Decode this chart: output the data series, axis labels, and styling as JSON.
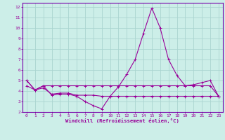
{
  "xlabel": "Windchill (Refroidissement éolien,°C)",
  "background_color": "#cceee8",
  "grid_color": "#aad4d0",
  "line_color": "#990099",
  "spine_color": "#7700aa",
  "xlim": [
    -0.5,
    23.5
  ],
  "ylim": [
    2,
    12.4
  ],
  "yticks": [
    2,
    3,
    4,
    5,
    6,
    7,
    8,
    9,
    10,
    11,
    12
  ],
  "xticks": [
    0,
    1,
    2,
    3,
    4,
    5,
    6,
    7,
    8,
    9,
    10,
    11,
    12,
    13,
    14,
    15,
    16,
    17,
    18,
    19,
    20,
    21,
    22,
    23
  ],
  "series1_x": [
    0,
    1,
    2,
    3,
    4,
    5,
    6,
    7,
    8,
    9,
    10,
    11,
    12,
    13,
    14,
    15,
    16,
    17,
    18,
    19,
    20,
    21,
    22,
    23
  ],
  "series1_y": [
    5.0,
    4.1,
    4.5,
    3.6,
    3.7,
    3.7,
    3.5,
    3.0,
    2.6,
    2.3,
    3.5,
    4.4,
    5.6,
    7.0,
    9.5,
    11.9,
    10.0,
    7.0,
    5.5,
    4.5,
    4.6,
    4.8,
    5.0,
    3.5
  ],
  "series2_x": [
    0,
    1,
    2,
    3,
    4,
    5,
    6,
    7,
    8,
    9,
    10,
    11,
    12,
    13,
    14,
    15,
    16,
    17,
    18,
    19,
    20,
    21,
    22,
    23
  ],
  "series2_y": [
    4.5,
    4.1,
    4.5,
    4.5,
    4.5,
    4.5,
    4.5,
    4.5,
    4.5,
    4.5,
    4.5,
    4.5,
    4.5,
    4.5,
    4.5,
    4.5,
    4.5,
    4.5,
    4.5,
    4.5,
    4.5,
    4.5,
    4.5,
    3.5
  ],
  "series3_x": [
    0,
    1,
    2,
    3,
    4,
    5,
    6,
    7,
    8,
    9,
    10,
    11,
    12,
    13,
    14,
    15,
    16,
    17,
    18,
    19,
    20,
    21,
    22,
    23
  ],
  "series3_y": [
    5.0,
    4.1,
    4.3,
    3.7,
    3.8,
    3.8,
    3.6,
    3.6,
    3.6,
    3.5,
    3.5,
    3.5,
    3.5,
    3.5,
    3.5,
    3.5,
    3.5,
    3.5,
    3.5,
    3.5,
    3.5,
    3.5,
    3.5,
    3.5
  ]
}
